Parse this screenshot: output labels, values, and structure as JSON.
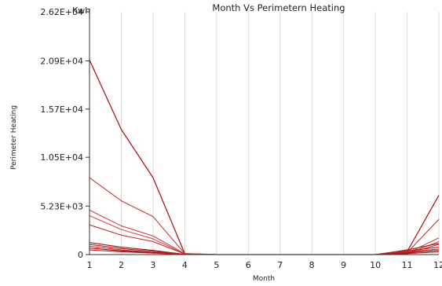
{
  "chart_data": {
    "type": "line",
    "title": "Month Vs Perimetern Heating",
    "unit": "Kwh",
    "xlabel": "Month",
    "ylabel": "Perimeter Heating",
    "x": [
      1,
      2,
      3,
      4,
      5,
      6,
      7,
      8,
      9,
      10,
      11,
      12
    ],
    "xticks": [
      "1",
      "2",
      "3",
      "4",
      "5",
      "6",
      "7",
      "8",
      "9",
      "10",
      "11",
      "12"
    ],
    "yticks": [
      {
        "value": 0,
        "label": "0"
      },
      {
        "value": 5230,
        "label": "5.23E+03"
      },
      {
        "value": 10500,
        "label": "1.05E+04"
      },
      {
        "value": 15700,
        "label": "1.57E+04"
      },
      {
        "value": 20900,
        "label": "2.09E+04"
      },
      {
        "value": 26200,
        "label": "2.62E+04"
      }
    ],
    "xlim": [
      1,
      12
    ],
    "ylim": [
      0,
      26200
    ],
    "grid": true,
    "line_colors": [
      "#b01818",
      "#c43a3a",
      "#cc4444",
      "#d05050",
      "#c22a2a",
      "#a81010",
      "#b82020",
      "#c03030",
      "#9a0c0c",
      "#b52626"
    ],
    "series": [
      {
        "values": [
          21000,
          13500,
          8300,
          100,
          0,
          0,
          0,
          0,
          0,
          0,
          300,
          6400
        ]
      },
      {
        "values": [
          8300,
          5800,
          4100,
          100,
          0,
          0,
          0,
          0,
          0,
          0,
          200,
          3800
        ]
      },
      {
        "values": [
          4800,
          3100,
          2000,
          100,
          0,
          0,
          0,
          0,
          0,
          0,
          150,
          1800
        ]
      },
      {
        "values": [
          4200,
          2700,
          1700,
          80,
          0,
          0,
          0,
          0,
          0,
          0,
          120,
          1400
        ]
      },
      {
        "values": [
          3200,
          2100,
          1400,
          60,
          0,
          0,
          0,
          0,
          0,
          0,
          100,
          1100
        ]
      },
      {
        "values": [
          1300,
          800,
          450,
          30,
          0,
          0,
          0,
          0,
          0,
          0,
          500,
          1200
        ]
      },
      {
        "values": [
          1100,
          650,
          350,
          20,
          0,
          0,
          0,
          0,
          0,
          0,
          400,
          800
        ]
      },
      {
        "values": [
          900,
          500,
          250,
          15,
          0,
          0,
          0,
          0,
          0,
          0,
          300,
          600
        ]
      },
      {
        "values": [
          700,
          400,
          200,
          10,
          0,
          0,
          0,
          0,
          0,
          0,
          200,
          450
        ]
      },
      {
        "values": [
          500,
          300,
          150,
          5,
          0,
          0,
          0,
          0,
          0,
          0,
          100,
          300
        ]
      }
    ]
  }
}
